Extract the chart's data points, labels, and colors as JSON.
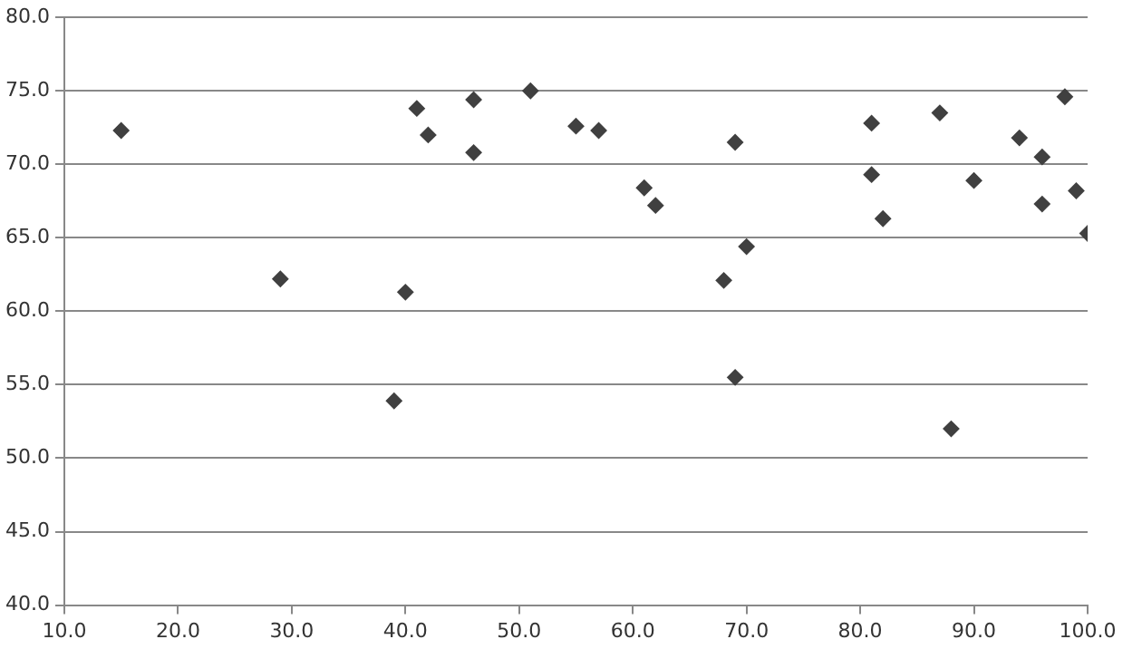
{
  "chart_data": {
    "type": "scatter",
    "color": "#404040",
    "marker": "diamond",
    "grid": "y",
    "legend": false,
    "x": [
      15,
      29,
      39,
      40,
      41,
      42,
      46,
      46,
      51,
      55,
      57,
      61,
      62,
      68,
      69,
      69,
      70,
      81,
      81,
      82,
      87,
      88,
      90,
      94,
      96,
      96,
      98,
      99,
      100
    ],
    "values": [
      72.3,
      62.2,
      53.9,
      61.3,
      73.8,
      72.0,
      74.4,
      70.8,
      75.0,
      72.6,
      72.3,
      68.4,
      67.2,
      62.1,
      71.5,
      55.5,
      64.4,
      72.8,
      69.3,
      66.3,
      73.5,
      52.0,
      68.9,
      71.8,
      70.5,
      67.3,
      74.6,
      68.2,
      65.3
    ],
    "xlim": [
      10,
      100
    ],
    "xticks": [
      {
        "value": 10,
        "label": "10.0"
      },
      {
        "value": 20,
        "label": "20.0"
      },
      {
        "value": 30,
        "label": "30.0"
      },
      {
        "value": 40,
        "label": "40.0"
      },
      {
        "value": 50,
        "label": "50.0"
      },
      {
        "value": 60,
        "label": "60.0"
      },
      {
        "value": 70,
        "label": "70.0"
      },
      {
        "value": 80,
        "label": "80.0"
      },
      {
        "value": 90,
        "label": "90.0"
      },
      {
        "value": 100,
        "label": "100.0"
      }
    ],
    "ylim": [
      40,
      80
    ],
    "yticks": [
      {
        "value": 40,
        "label": "40.0"
      },
      {
        "value": 45,
        "label": "45.0"
      },
      {
        "value": 50,
        "label": "50.0"
      },
      {
        "value": 55,
        "label": "55.0"
      },
      {
        "value": 60,
        "label": "60.0"
      },
      {
        "value": 65,
        "label": "65.0"
      },
      {
        "value": 70,
        "label": "70.0"
      },
      {
        "value": 75,
        "label": "75.0"
      },
      {
        "value": 80,
        "label": "80.0"
      }
    ]
  }
}
